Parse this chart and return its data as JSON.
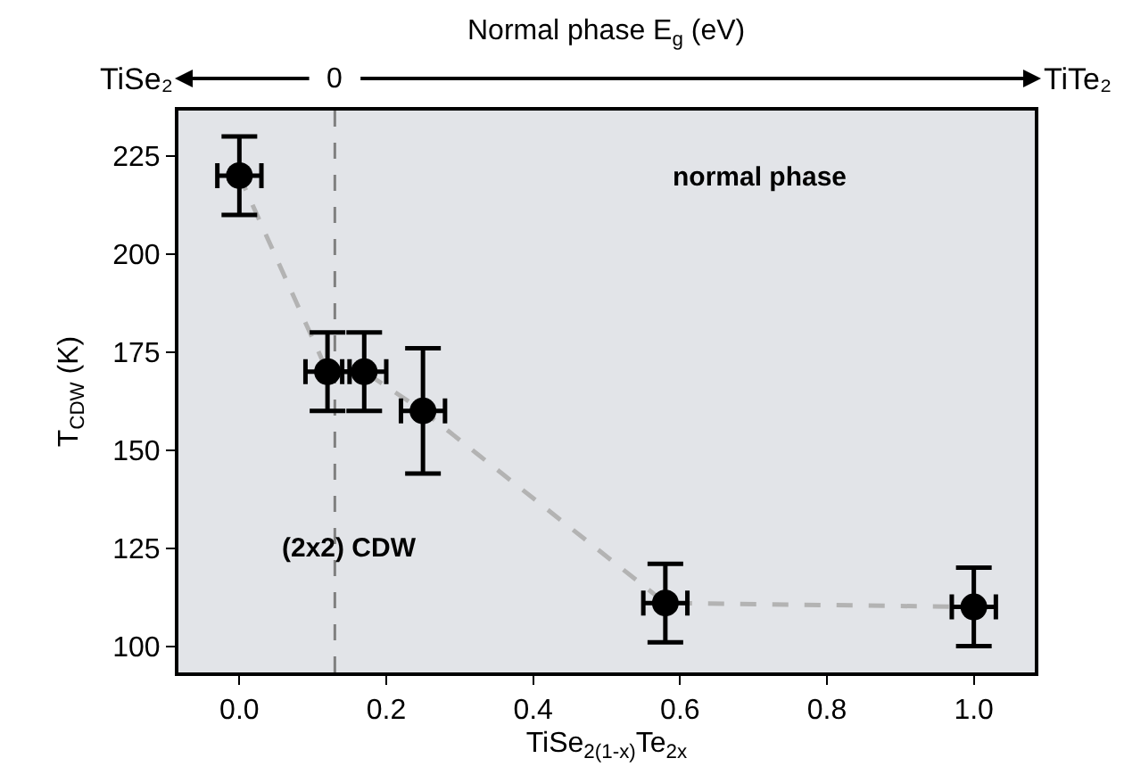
{
  "chart_data": {
    "type": "scatter",
    "xlabel": "TiSe$_{2(1-x)}$Te$_{2x}$",
    "ylabel": "T$_{CDW}$ (K)",
    "x": [
      0,
      0.12,
      0.17,
      0.25,
      0.58,
      1.0
    ],
    "series": [
      {
        "type": "line",
        "color": "#b3b3b3",
        "line_style": "dashed",
        "values": [
          220,
          170,
          170,
          160,
          111,
          110
        ]
      },
      {
        "color": "#000000",
        "marker": "circle",
        "values": [
          220,
          170,
          170,
          160,
          111,
          110
        ],
        "errors": [
          10,
          10,
          10,
          [
            144,
            176
          ],
          10,
          10
        ],
        "xerrors": [
          0.03,
          0.03,
          0.03,
          0.03,
          0.03,
          0.03
        ]
      }
    ],
    "xlim": [
      -0.083,
      1.083
    ],
    "xticks": [
      {
        "value": 0,
        "label": "0.0"
      },
      0.2,
      0.4,
      0.6,
      0.8,
      {
        "value": 1,
        "label": "1.0"
      }
    ],
    "ylim": [
      93.3,
      236.6
    ],
    "yticks": [
      100,
      125,
      150,
      175,
      200,
      225
    ],
    "ref_lines": [
      {
        "axis": "x",
        "value": 0.13,
        "color": "#808080",
        "line_style": "dashed"
      }
    ],
    "annotations": [
      "Normal phase E$_{g}$ (eV)",
      "TiSe₂",
      "0",
      "TiTe₂",
      "normal phase",
      "(2x2) CDW"
    ],
    "grid": false
  }
}
